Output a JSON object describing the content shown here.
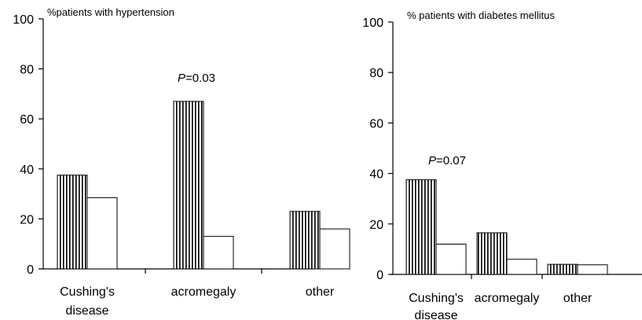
{
  "chart_data": [
    {
      "type": "bar",
      "title": "%patients with hypertension",
      "categories": [
        "Cushing's disease",
        "acromegaly",
        "other"
      ],
      "category_lines": [
        [
          "Cushing's",
          "disease"
        ],
        [
          "acromegaly"
        ],
        [
          "other"
        ]
      ],
      "series": [
        {
          "pattern": "vertical-stripes",
          "values": [
            37.5,
            67,
            23
          ]
        },
        {
          "pattern": "open",
          "values": [
            28.5,
            13,
            16
          ]
        }
      ],
      "ylim": [
        0,
        100
      ],
      "yticks": [
        "0",
        "20",
        "40",
        "60",
        "80",
        "100"
      ],
      "annotation": {
        "italic": "P",
        "rest": "=0.03",
        "category_index": 1
      },
      "grid": false
    },
    {
      "type": "bar",
      "title": "% patients with diabetes mellitus",
      "categories": [
        "Cushing's disease",
        "acromegaly",
        "other"
      ],
      "category_lines": [
        [
          "Cushing's",
          "disease"
        ],
        [
          "acromegaly"
        ],
        [
          "other"
        ]
      ],
      "series": [
        {
          "pattern": "vertical-stripes",
          "values": [
            37.5,
            16.5,
            4
          ]
        },
        {
          "pattern": "open",
          "values": [
            12,
            6,
            3.8
          ]
        }
      ],
      "ylim": [
        0,
        100
      ],
      "yticks": [
        "0",
        "20",
        "40",
        "60",
        "80",
        "100"
      ],
      "annotation": {
        "italic": "P",
        "rest": "=0.07",
        "category_index": 0
      },
      "grid": false
    }
  ]
}
